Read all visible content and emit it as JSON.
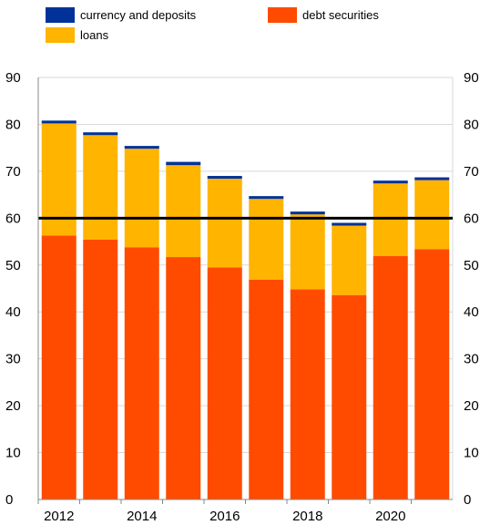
{
  "chart_data": {
    "type": "bar",
    "stacked": true,
    "categories": [
      "2012",
      "2013",
      "2014",
      "2015",
      "2016",
      "2017",
      "2018",
      "2019",
      "2020",
      "2021"
    ],
    "x_tick_labels": [
      "2012",
      "2014",
      "2016",
      "2018",
      "2020"
    ],
    "series": [
      {
        "name": "debt securities",
        "color": "#ff4b00",
        "values": [
          56.3,
          55.4,
          53.8,
          51.7,
          49.5,
          46.9,
          44.8,
          43.6,
          51.9,
          53.4
        ]
      },
      {
        "name": "loans",
        "color": "#ffb400",
        "values": [
          23.9,
          22.3,
          21.0,
          19.6,
          18.9,
          17.2,
          16.0,
          14.8,
          15.5,
          14.7
        ]
      },
      {
        "name": "currency and deposits",
        "color": "#003299",
        "values": [
          0.6,
          0.6,
          0.6,
          0.7,
          0.6,
          0.6,
          0.6,
          0.6,
          0.6,
          0.6
        ]
      }
    ],
    "legend": [
      {
        "label": "currency and deposits",
        "color": "#003299"
      },
      {
        "label": "debt securities",
        "color": "#ff4b00"
      },
      {
        "label": "loans",
        "color": "#ffb400"
      }
    ],
    "reference_line": {
      "value": 60,
      "color": "#000000"
    },
    "y_ticks": [
      "0",
      "10",
      "20",
      "30",
      "40",
      "50",
      "60",
      "70",
      "80",
      "90"
    ],
    "ylim": [
      0,
      90
    ],
    "grid": true,
    "legend_position": "top-left",
    "title": "",
    "xlabel": "",
    "ylabel": ""
  }
}
